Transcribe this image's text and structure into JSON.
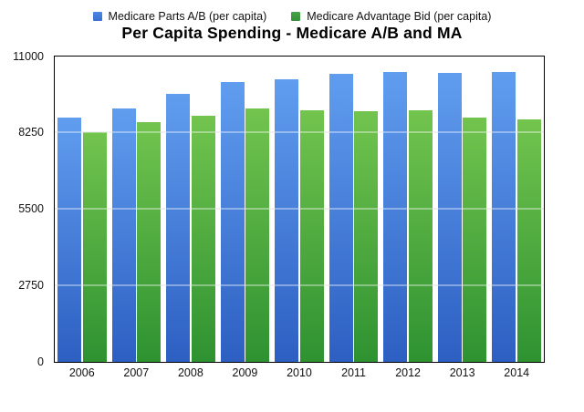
{
  "chart_data": {
    "type": "bar",
    "title": "Per Capita Spending - Medicare A/B and MA",
    "legend_position": "top",
    "grid": "horizontal",
    "categories": [
      "2006",
      "2007",
      "2008",
      "2009",
      "2010",
      "2011",
      "2012",
      "2013",
      "2014"
    ],
    "series": [
      {
        "key": "medicare-parts-ab",
        "name": "Medicare Parts A/B (per capita)",
        "values": [
          8770,
          9120,
          9650,
          10080,
          10170,
          10370,
          10440,
          10390,
          10420
        ],
        "color_top": "#609DEF",
        "color_bottom": "#2D5FC2",
        "swatch_top": "#4B87E2",
        "swatch_bottom": "#3A70CF"
      },
      {
        "key": "medicare-advantage-bid",
        "name": "Medicare Advantage Bid (per capita)",
        "values": [
          8250,
          8630,
          8850,
          9100,
          9040,
          9020,
          9060,
          8780,
          8730
        ],
        "color_top": "#72C44E",
        "color_bottom": "#2E9231",
        "swatch_top": "#46A448",
        "swatch_bottom": "#35903A"
      }
    ],
    "xlabel": "",
    "ylabel": "",
    "ylim": [
      0,
      11000
    ],
    "yticks": [
      0,
      2750,
      5500,
      8250,
      11000
    ],
    "colors": {
      "background": "#FFFFFF",
      "axis_border": "#000000",
      "gridline": "#E8E8E8",
      "text": "#111111"
    }
  }
}
